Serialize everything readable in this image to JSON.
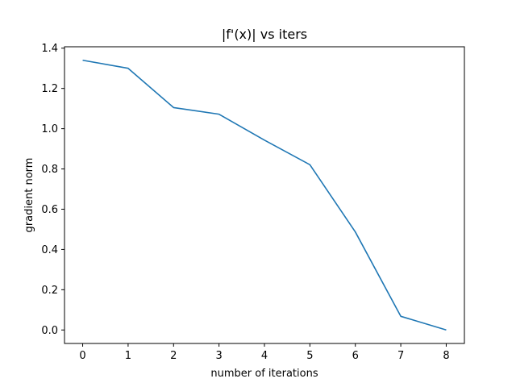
{
  "chart_data": {
    "type": "line",
    "title": "|f'(x)| vs iters",
    "xlabel": "number of iterations",
    "ylabel": "gradient norm",
    "xlim": [
      -0.4,
      8.4
    ],
    "ylim": [
      -0.067,
      1.407
    ],
    "xticks": [
      0,
      1,
      2,
      3,
      4,
      5,
      6,
      7,
      8
    ],
    "xtick_labels": [
      "0",
      "1",
      "2",
      "3",
      "4",
      "5",
      "6",
      "7",
      "8"
    ],
    "yticks": [
      0.0,
      0.2,
      0.4,
      0.6,
      0.8,
      1.0,
      1.2,
      1.4
    ],
    "ytick_labels": [
      "0.0",
      "0.2",
      "0.4",
      "0.6",
      "0.8",
      "1.0",
      "1.2",
      "1.4"
    ],
    "grid": false,
    "series": [
      {
        "color": "#1f77b4",
        "x": [
          0,
          1,
          2,
          3,
          4,
          5,
          6,
          7,
          8
        ],
        "y": [
          1.34,
          1.3,
          1.105,
          1.072,
          0.943,
          0.821,
          0.487,
          0.068,
          0.0
        ]
      }
    ]
  }
}
